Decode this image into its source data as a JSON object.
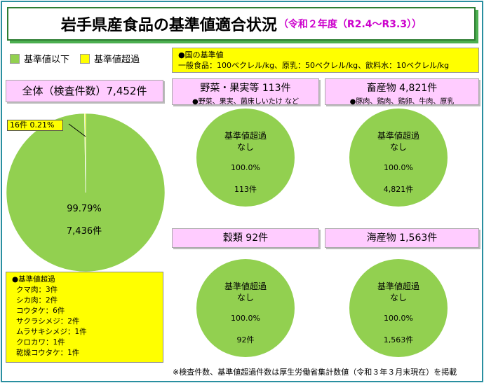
{
  "title": {
    "main": "岩手県産食品の基準値適合状況",
    "sub": "（令和２年度（R2.4～R3.3））"
  },
  "legend": [
    {
      "label": "基準値以下",
      "color": "#92d050"
    },
    {
      "label": "基準値超過",
      "color": "#ffff00"
    }
  ],
  "standards": {
    "heading": "●国の基準値",
    "text": "一般食品：100ベクレル/kg、原乳：50ベクレル/kg、飲料水：10ベクレル/kg"
  },
  "overall": {
    "label": "全体（検査件数）7,452件",
    "callout": "16件  0.21%"
  },
  "categories": [
    {
      "label": "野菜・果実等 113件",
      "sub": "●野菜、果実、菌床しいたけ など"
    },
    {
      "label": "畜産物 4,821件",
      "sub": "●豚肉、鶏肉、鶏卵、牛肉、原乳"
    },
    {
      "label": "穀類 92件",
      "sub": ""
    },
    {
      "label": "海産物 1,563件",
      "sub": ""
    }
  ],
  "chart_data": [
    {
      "type": "pie",
      "title": "全体（検査件数）7,452件",
      "categories": [
        "基準値以下",
        "基準値超過"
      ],
      "values": [
        7436,
        16
      ],
      "percent_labels": [
        "99.79%",
        "0.21%"
      ],
      "count_labels": [
        "7,436件",
        "16件"
      ],
      "colors": [
        "#92d050",
        "#ffff00"
      ]
    },
    {
      "type": "pie",
      "title": "野菜・果実等 113件",
      "categories": [
        "基準値以下"
      ],
      "values": [
        113
      ],
      "labels": [
        "基準値超過",
        "なし",
        "100.0%",
        "113件"
      ]
    },
    {
      "type": "pie",
      "title": "畜産物 4,821件",
      "categories": [
        "基準値以下"
      ],
      "values": [
        4821
      ],
      "labels": [
        "基準値超過",
        "なし",
        "100.0%",
        "4,821件"
      ]
    },
    {
      "type": "pie",
      "title": "穀類 92件",
      "categories": [
        "基準値以下"
      ],
      "values": [
        92
      ],
      "labels": [
        "基準値超過",
        "なし",
        "100.0%",
        "92件"
      ]
    },
    {
      "type": "pie",
      "title": "海産物 1,563件",
      "categories": [
        "基準値以下"
      ],
      "values": [
        1563
      ],
      "labels": [
        "基準値超過",
        "なし",
        "100.0%",
        "1,563件"
      ]
    }
  ],
  "exceed_list": {
    "heading": "●基準値超過",
    "items": [
      "クマ肉：3件",
      "シカ肉：2件",
      "コウタケ：6件",
      "サクラシメジ：2件",
      "ムラサキシメジ：1件",
      "クロカワ：1件",
      "乾燥コウタケ：1件"
    ]
  },
  "note": "※検査件数、基準値超過件数は厚生労働省集計数値（令和３年３月末現在）を掲載"
}
